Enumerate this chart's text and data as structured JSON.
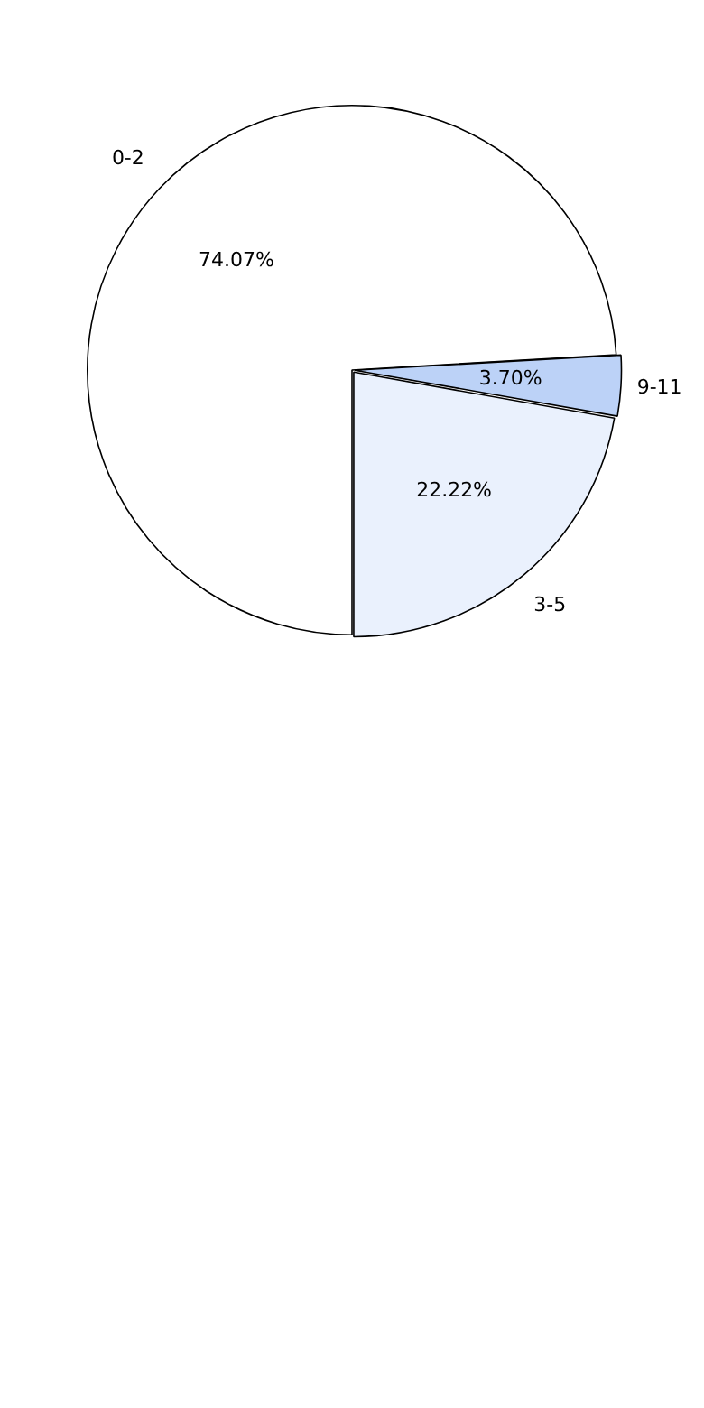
{
  "chart_data": {
    "type": "pie",
    "categories": [
      "0-2",
      "9-11",
      "3-5"
    ],
    "values": [
      74.07,
      3.7,
      22.22
    ],
    "value_labels": [
      "74.07%",
      "3.70%",
      "22.22%"
    ],
    "colors": [
      "#ffffff",
      "#bcd2f7",
      "#eaf1fd"
    ],
    "legend": false
  }
}
